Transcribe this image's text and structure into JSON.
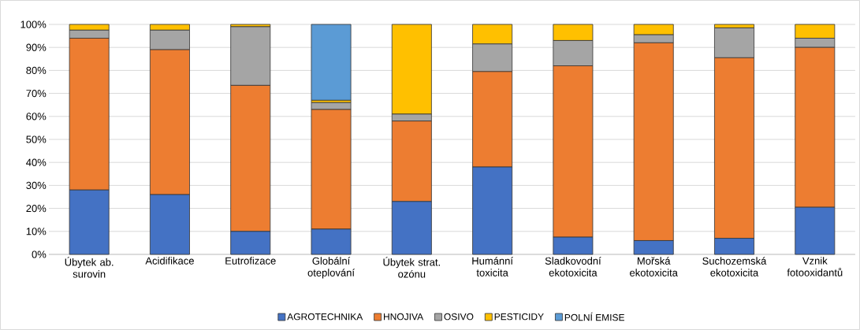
{
  "chart_data": {
    "type": "bar",
    "stacked": true,
    "categories": [
      "Úbytek ab. surovin",
      "Acidifikace",
      "Eutrofizace",
      "Globální oteplování",
      "Úbytek strat. ozónu",
      "Humánní toxicita",
      "Sladkovodní ekotoxicita",
      "Mořská ekotoxicita",
      "Suchozemská ekotoxicita",
      "Vznik fotooxidantů"
    ],
    "series": [
      {
        "name": "AGROTECHNIKA",
        "color": "#4472c4",
        "values": [
          28,
          26,
          10,
          11,
          23,
          38,
          7.5,
          6,
          7,
          20.5
        ]
      },
      {
        "name": "HNOJIVA",
        "color": "#ed7d31",
        "values": [
          66,
          63,
          63.5,
          52,
          35,
          41.5,
          74.5,
          86,
          78.5,
          69.5
        ]
      },
      {
        "name": "OSIVO",
        "color": "#a5a5a5",
        "values": [
          3.5,
          8.5,
          25.5,
          3,
          3,
          12,
          11,
          3.5,
          13,
          4
        ]
      },
      {
        "name": "PESTICIDY",
        "color": "#ffc000",
        "values": [
          2.5,
          2.5,
          1,
          1,
          39,
          8.5,
          7,
          4.5,
          1.5,
          6
        ]
      },
      {
        "name": "POLNÍ EMISE",
        "color": "#5b9bd5",
        "values": [
          0,
          0,
          0,
          33,
          0,
          0,
          0,
          0,
          0,
          0
        ]
      }
    ],
    "ylim": [
      0,
      100
    ],
    "yticks": [
      {
        "value": 0,
        "label": "0%"
      },
      {
        "value": 10,
        "label": "10%"
      },
      {
        "value": 20,
        "label": "20%"
      },
      {
        "value": 30,
        "label": "30%"
      },
      {
        "value": 40,
        "label": "40%"
      },
      {
        "value": 50,
        "label": "50%"
      },
      {
        "value": 60,
        "label": "60%"
      },
      {
        "value": 70,
        "label": "70%"
      },
      {
        "value": 80,
        "label": "80%"
      },
      {
        "value": 90,
        "label": "90%"
      },
      {
        "value": 100,
        "label": "100%"
      }
    ],
    "grid": "y",
    "legend": "bottom"
  }
}
